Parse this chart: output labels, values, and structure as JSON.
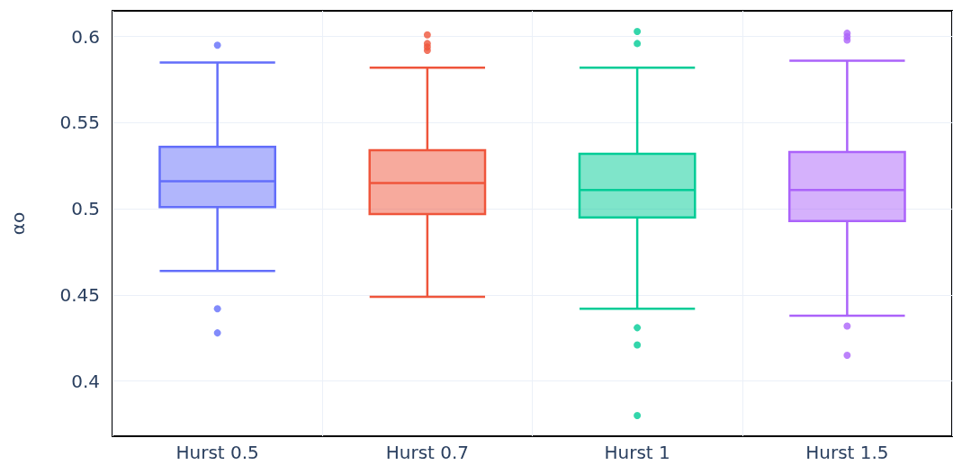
{
  "chart_data": {
    "type": "box",
    "ylabel": "αo",
    "categories": [
      "Hurst 0.5",
      "Hurst 0.7",
      "Hurst 1",
      "Hurst 1.5"
    ],
    "colors": [
      "#636efa",
      "#ef553b",
      "#00cc96",
      "#ab63fa"
    ],
    "boxes": [
      {
        "low": 0.464,
        "q1": 0.501,
        "median": 0.516,
        "q3": 0.536,
        "high": 0.585,
        "outliers": [
          0.595,
          0.442,
          0.428
        ]
      },
      {
        "low": 0.449,
        "q1": 0.497,
        "median": 0.515,
        "q3": 0.534,
        "high": 0.582,
        "outliers": [
          0.601,
          0.596,
          0.594,
          0.592
        ]
      },
      {
        "low": 0.442,
        "q1": 0.495,
        "median": 0.511,
        "q3": 0.532,
        "high": 0.582,
        "outliers": [
          0.603,
          0.596,
          0.431,
          0.421,
          0.38
        ]
      },
      {
        "low": 0.438,
        "q1": 0.493,
        "median": 0.511,
        "q3": 0.533,
        "high": 0.586,
        "outliers": [
          0.602,
          0.6,
          0.598,
          0.432,
          0.415
        ]
      }
    ],
    "ylim": [
      0.368,
      0.615
    ],
    "yticks": [
      0.4,
      0.45,
      0.5,
      0.55,
      0.6
    ],
    "grid": true
  }
}
